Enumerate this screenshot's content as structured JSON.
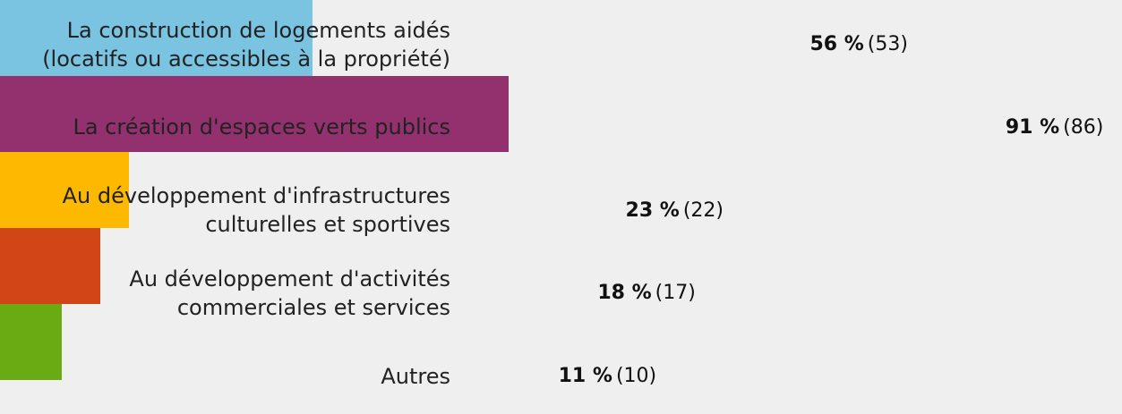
{
  "chart_data": {
    "type": "bar",
    "orientation": "horizontal",
    "categories": [
      "La construction de logements aidés\n(locatifs ou accessibles à la propriété)",
      "La création d'espaces verts publics",
      "Au développement d'infrastructures\nculturelles et sportives",
      "Au développement d'activités\ncommerciales et services",
      "Autres"
    ],
    "values": [
      56,
      91,
      23,
      18,
      11
    ],
    "value_labels": [
      "56 %",
      "91 %",
      "23 %",
      "18 %",
      "11 %"
    ],
    "counts": [
      53,
      86,
      22,
      17,
      10
    ],
    "count_labels": [
      "(53)",
      "(86)",
      "(22)",
      "(17)",
      "(10)"
    ],
    "colors": [
      "#7ac3e1",
      "#93316e",
      "#fdb900",
      "#d24516",
      "#6aaa12"
    ],
    "xlim": [
      0,
      100
    ]
  }
}
